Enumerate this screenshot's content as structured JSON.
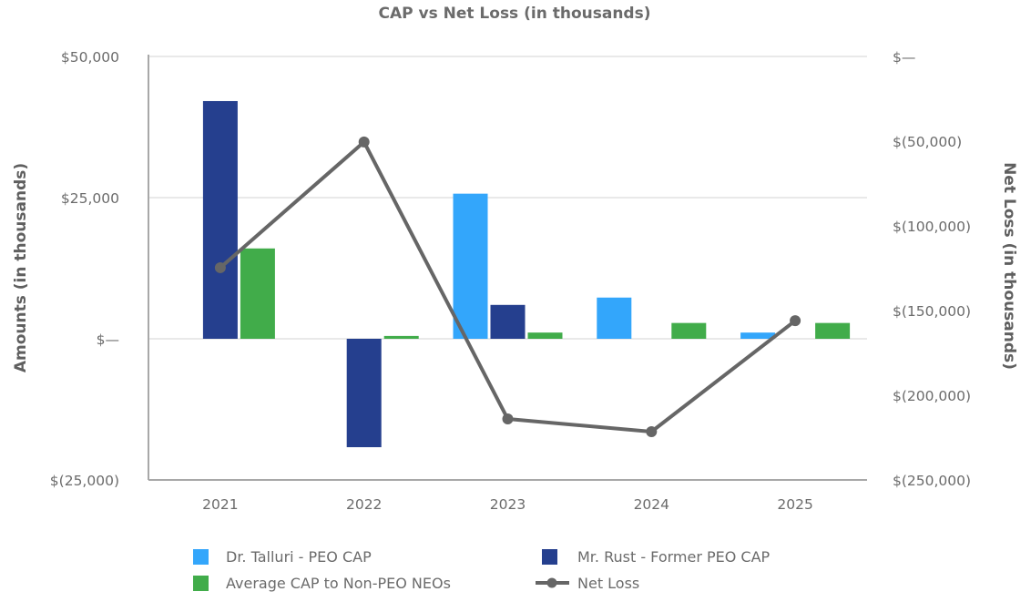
{
  "chart_data": {
    "type": "bar",
    "title": "CAP vs Net Loss (in thousands)",
    "xlabel": "",
    "ylabel": "Amounts (in thousands)",
    "y2label": "Net Loss (in thousands)",
    "categories": [
      "2021",
      "2022",
      "2023",
      "2024",
      "2025"
    ],
    "ylim": [
      -25000,
      50000
    ],
    "y_ticks": [
      50000,
      25000,
      0,
      -25000
    ],
    "y_tick_labels": [
      "$50,000",
      "$25,000",
      "$—",
      "$(25,000)"
    ],
    "y2lim": [
      -250000,
      0
    ],
    "y2_ticks": [
      0,
      -50000,
      -100000,
      -150000,
      -200000,
      -250000
    ],
    "y2_tick_labels": [
      "$—",
      "$(50,000)",
      "$(100,000)",
      "$(150,000)",
      "$(200,000)",
      "$(250,000)"
    ],
    "grid": true,
    "legend_position": "bottom",
    "series": [
      {
        "name": "Dr. Talluri - PEO CAP",
        "type": "bar",
        "axis": "left",
        "color": "#33a6fb",
        "values": [
          null,
          null,
          25700,
          7300,
          1100
        ]
      },
      {
        "name": "Mr. Rust - Former PEO CAP",
        "type": "bar",
        "axis": "left",
        "color": "#253f8e",
        "values": [
          42100,
          -19200,
          6000,
          null,
          null
        ]
      },
      {
        "name": "Average CAP to Non-PEO NEOs",
        "type": "bar",
        "axis": "left",
        "color": "#41ac4a",
        "values": [
          16000,
          500,
          1100,
          2800,
          2800
        ]
      },
      {
        "name": "Net Loss",
        "type": "line",
        "axis": "right",
        "color": "#666666",
        "values": [
          -124700,
          -50500,
          -214000,
          -221500,
          -156000
        ]
      }
    ]
  },
  "legend": {
    "items": [
      {
        "label": "Dr. Talluri - PEO CAP"
      },
      {
        "label": "Mr. Rust - Former PEO CAP"
      },
      {
        "label": "Average CAP to Non-PEO NEOs"
      },
      {
        "label": "Net Loss"
      }
    ]
  }
}
